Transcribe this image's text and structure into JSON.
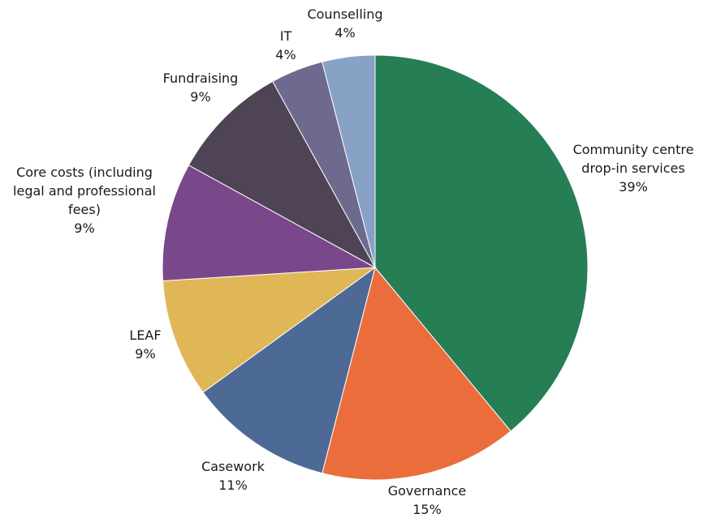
{
  "chart_data": {
    "type": "pie",
    "title": "",
    "start": "top",
    "direction": "clockwise",
    "slices": [
      {
        "label_lines": [
          "Community centre",
          "drop-in services"
        ],
        "pct_label": "39%",
        "value": 39,
        "color": "#267E55"
      },
      {
        "label_lines": [
          "Governance"
        ],
        "pct_label": "15%",
        "value": 15,
        "color": "#EC6D3C"
      },
      {
        "label_lines": [
          "Casework"
        ],
        "pct_label": "11%",
        "value": 11,
        "color": "#4D6A96"
      },
      {
        "label_lines": [
          "LEAF"
        ],
        "pct_label": "9%",
        "value": 9,
        "color": "#DFB756"
      },
      {
        "label_lines": [
          "Core costs (including",
          "legal and professional",
          "fees)"
        ],
        "pct_label": "9%",
        "value": 9,
        "color": "#7B478B"
      },
      {
        "label_lines": [
          "Fundraising"
        ],
        "pct_label": "9%",
        "value": 9,
        "color": "#4F4356"
      },
      {
        "label_lines": [
          "IT"
        ],
        "pct_label": "4%",
        "value": 4,
        "color": "#6D6A8D"
      },
      {
        "label_lines": [
          "Counselling"
        ],
        "pct_label": "4%",
        "value": 4,
        "color": "#87A2C5"
      }
    ]
  }
}
